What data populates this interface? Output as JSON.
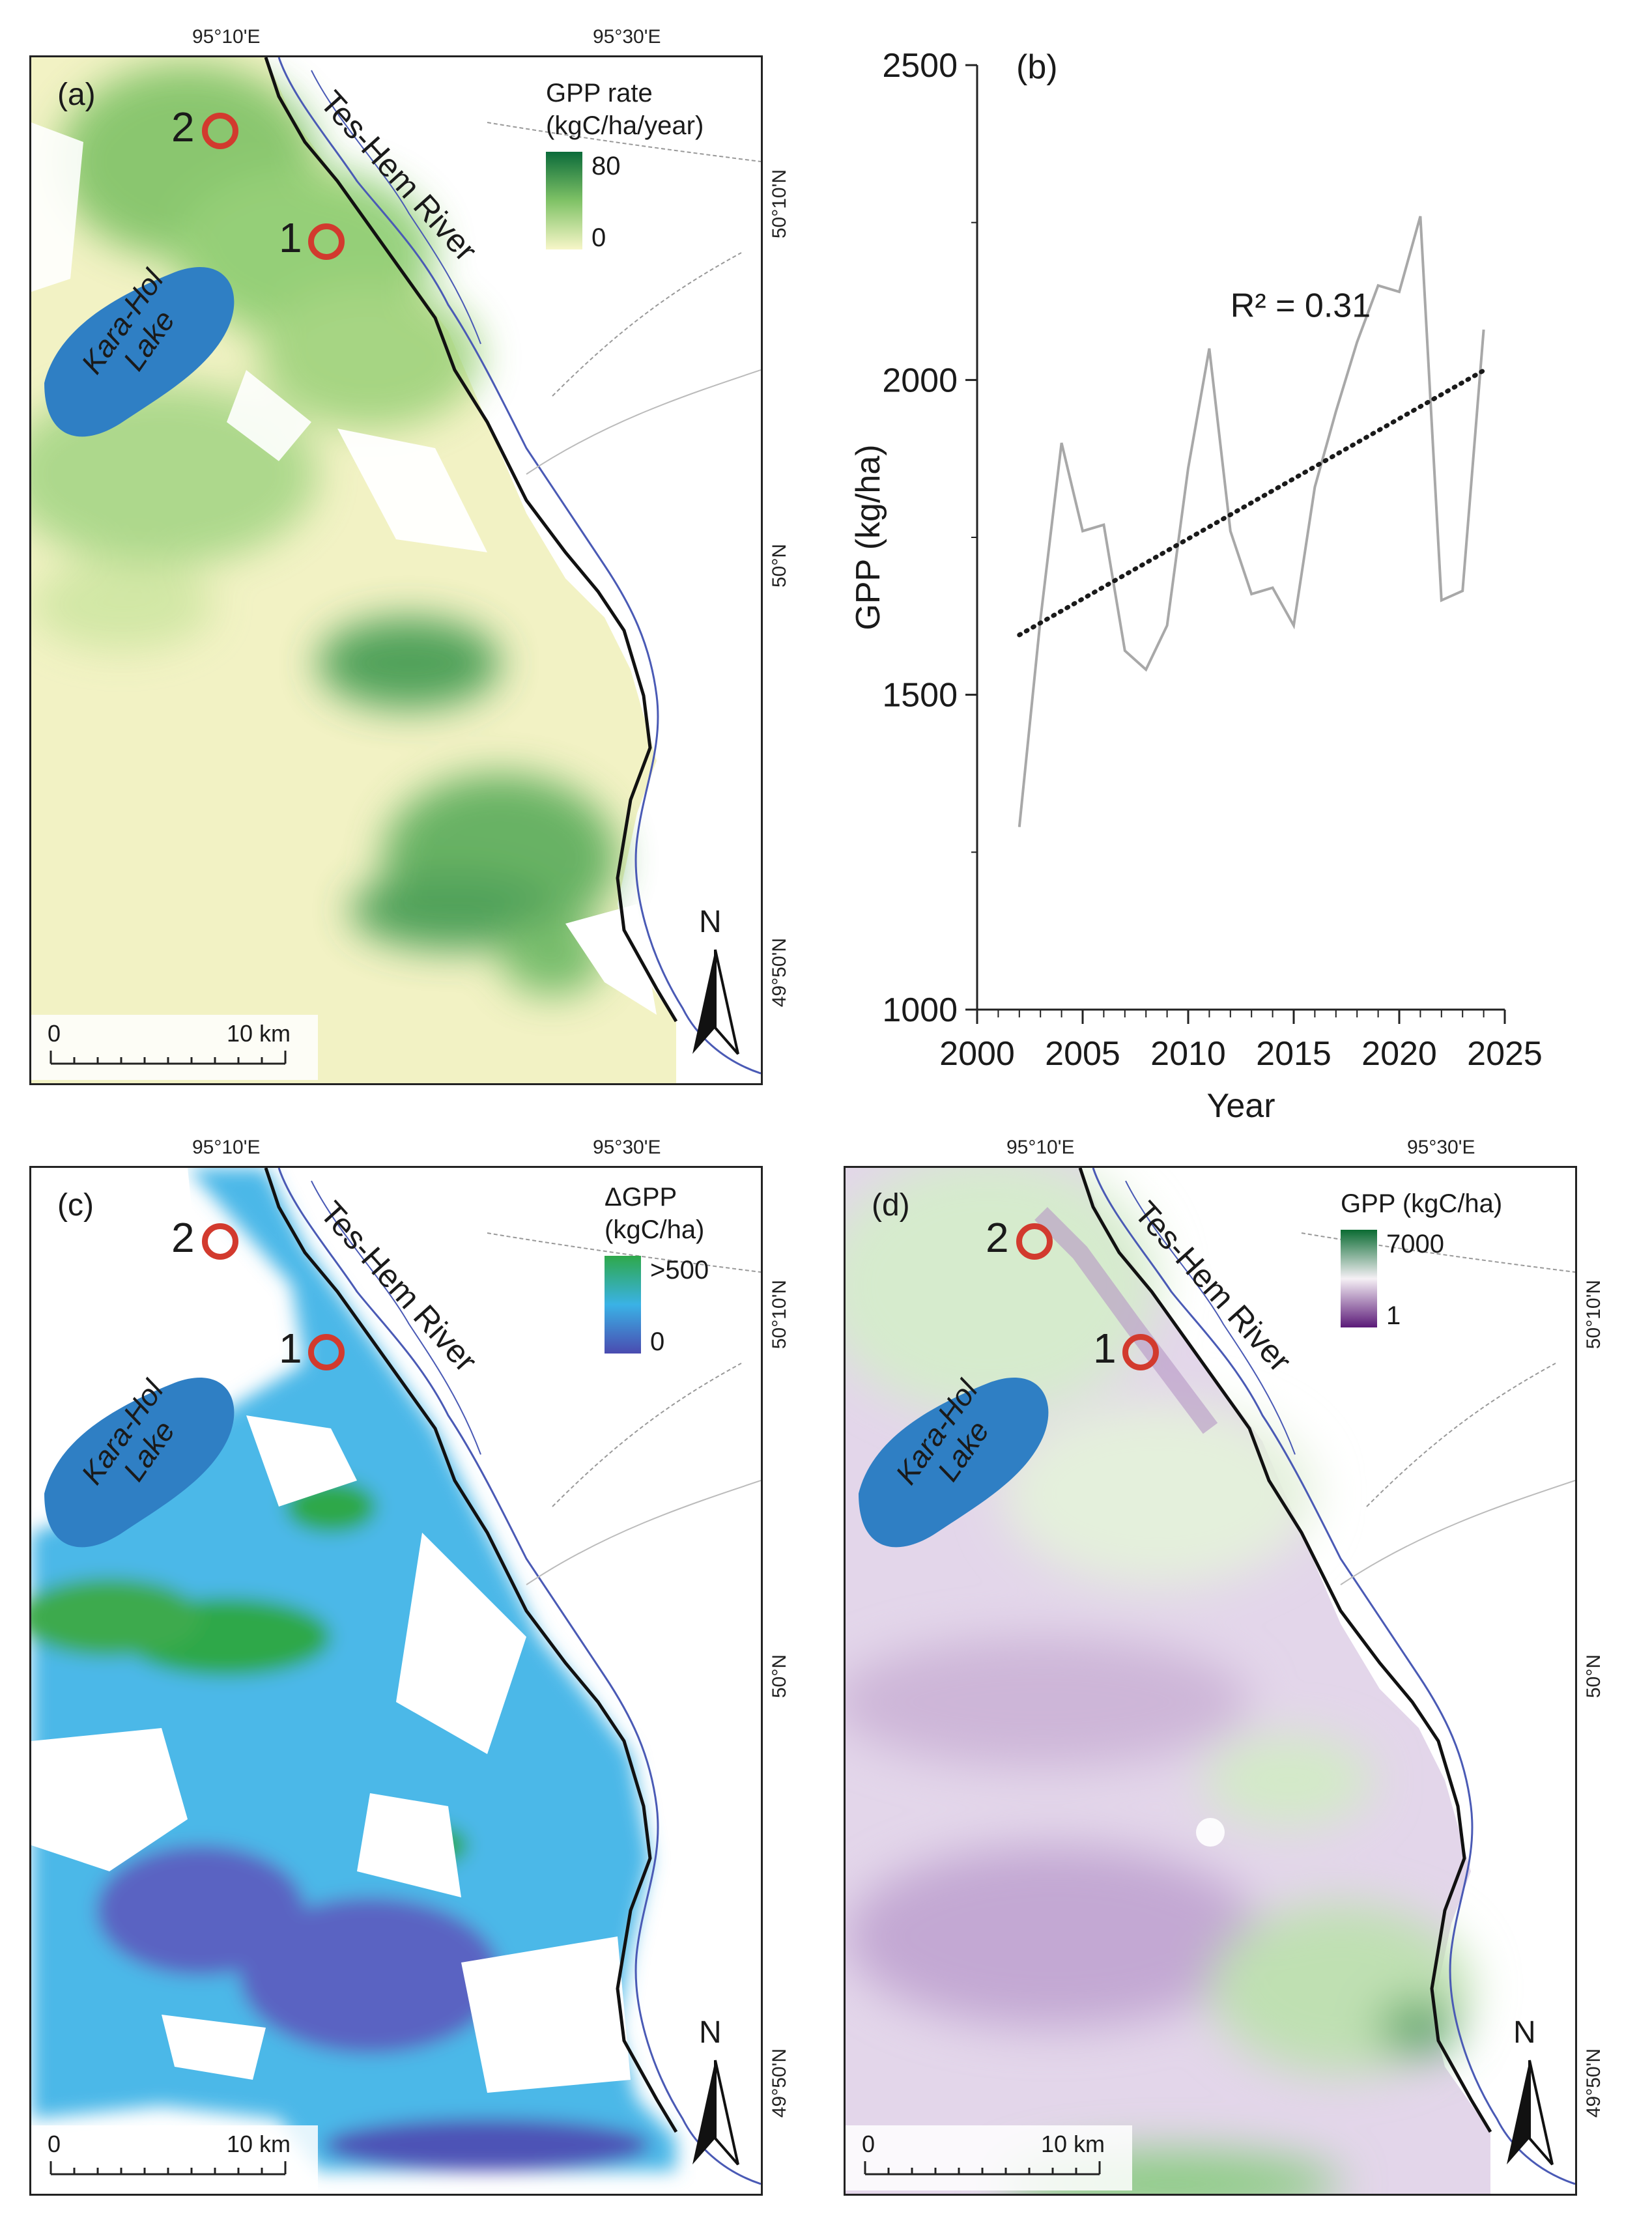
{
  "panels": {
    "a": {
      "label": "(a)",
      "lon_labels": [
        "95°10'E",
        "95°30'E"
      ],
      "lat_labels": [
        "50°10'N",
        "50°N",
        "49°50'N"
      ],
      "river": "Tes-Hem River",
      "lake": "Kara-Hol Lake",
      "sites": [
        "1",
        "2"
      ],
      "legend": {
        "title_line1": "GPP rate",
        "title_line2": "(kgC/ha/year)",
        "max": "80",
        "min": "0",
        "color_high": "#0b6b3a",
        "color_low": "#f7f6c8"
      },
      "scale": {
        "start": "0",
        "end": "10 km"
      },
      "north": "N"
    },
    "c": {
      "label": "(c)",
      "lon_labels": [
        "95°10'E",
        "95°30'E"
      ],
      "lat_labels": [
        "50°10'N",
        "50°N",
        "49°50'N"
      ],
      "river": "Tes-Hem River",
      "lake": "Kara-Hol Lake",
      "sites": [
        "1",
        "2"
      ],
      "legend": {
        "title_line1": "ΔGPP",
        "title_line2": "(kgC/ha)",
        "max": ">500",
        "min": "0",
        "color_high": "#2ea84a",
        "color_mid": "#3ab2e6",
        "color_low": "#4a4bb0"
      },
      "scale": {
        "start": "0",
        "end": "10 km"
      },
      "north": "N"
    },
    "d": {
      "label": "(d)",
      "lon_labels": [
        "95°10'E",
        "95°30'E"
      ],
      "lat_labels": [
        "50°10'N",
        "50°N",
        "49°50'N"
      ],
      "river": "Tes-Hem River",
      "lake": "Kara-Hol Lake",
      "sites": [
        "1",
        "2"
      ],
      "legend": {
        "title_line1": "GPP (kgC/ha)",
        "max": "7000",
        "min": "1",
        "color_high": "#0a6b32",
        "color_mid": "#f5f0f5",
        "color_low": "#5b1a78"
      },
      "scale": {
        "start": "0",
        "end": "10 km"
      },
      "north": "N"
    }
  },
  "colors": {
    "lake": "#2f7fc4",
    "site_ring": "#d23a2e",
    "river_line": "#4a5ab5"
  },
  "chart_data": {
    "type": "line",
    "panel_label": "(b)",
    "xlabel": "Year",
    "ylabel": "GPP (kg/ha)",
    "xlim": [
      2000,
      2025
    ],
    "ylim": [
      1000,
      2500
    ],
    "x_ticks": [
      "2000",
      "2005",
      "2010",
      "2015",
      "2020",
      "2025"
    ],
    "y_ticks": [
      "1000",
      "1500",
      "2000",
      "2500"
    ],
    "annotation": "R² = 0.31",
    "series": [
      {
        "type": "line",
        "color": "#a8a8a8",
        "x": [
          2002,
          2003,
          2004,
          2005,
          2006,
          2007,
          2008,
          2009,
          2010,
          2011,
          2012,
          2013,
          2014,
          2015,
          2016,
          2017,
          2018,
          2019,
          2020,
          2021,
          2022,
          2023,
          2024
        ],
        "y": [
          1290,
          1620,
          1900,
          1760,
          1770,
          1570,
          1540,
          1610,
          1860,
          2050,
          1760,
          1660,
          1670,
          1610,
          1830,
          1950,
          2060,
          2150,
          2140,
          2260,
          1650,
          1665,
          2080
        ]
      },
      {
        "type": "trend",
        "style": "dotted",
        "color": "#1a1a1a",
        "x": [
          2002,
          2024
        ],
        "y": [
          1595,
          2015
        ]
      }
    ]
  }
}
